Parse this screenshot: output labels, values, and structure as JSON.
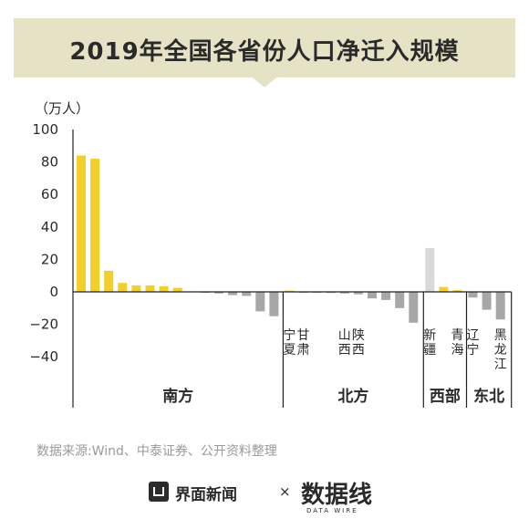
{
  "title": "2019年全国各省份人口净迁入规模",
  "source": "数据来源:Wind、中泰证券、公开资料整理",
  "brands": {
    "jiemian": "界面新闻",
    "cross": "×",
    "datawire_cn": "数据线",
    "datawire_en": "DATA WIRE"
  },
  "colors": {
    "title_band": "#e6e2c6",
    "south": "#f2cf2a",
    "negative": "#a7a7a7",
    "west_highlight": "#d9d9d9",
    "text": "#2a2a2a"
  },
  "chart_data": {
    "type": "bar",
    "title": "2019年全国各省份人口净迁入规模",
    "ylabel": "（万人）",
    "ylim": [
      -40,
      100
    ],
    "yticks": [
      100,
      80,
      60,
      40,
      20,
      0,
      -20,
      -40
    ],
    "grid": false,
    "regions": [
      {
        "name": "南方",
        "bars": [
          {
            "value": 84,
            "color": "south"
          },
          {
            "value": 82,
            "color": "south"
          },
          {
            "value": 13,
            "color": "south"
          },
          {
            "value": 5.5,
            "color": "south"
          },
          {
            "value": 4,
            "color": "south"
          },
          {
            "value": 4,
            "color": "south"
          },
          {
            "value": 3.5,
            "color": "south"
          },
          {
            "value": 2.5,
            "color": "south"
          },
          {
            "value": 0.3,
            "color": "south"
          },
          {
            "value": -0.5,
            "color": "negative"
          },
          {
            "value": -1,
            "color": "negative"
          },
          {
            "value": -2,
            "color": "negative"
          },
          {
            "value": -2.5,
            "color": "negative"
          },
          {
            "value": -12,
            "color": "negative"
          },
          {
            "value": -15,
            "color": "negative"
          }
        ]
      },
      {
        "name": "北方",
        "bars": [
          {
            "value": 0.8,
            "color": "south"
          },
          {
            "value": -0.3,
            "color": "negative"
          },
          {
            "value": -0.5,
            "color": "negative"
          },
          {
            "value": -0.7,
            "color": "negative"
          },
          {
            "value": -1,
            "color": "negative"
          },
          {
            "value": -1.5,
            "color": "negative"
          },
          {
            "value": -4,
            "color": "negative"
          },
          {
            "value": -5,
            "color": "negative"
          },
          {
            "value": -10,
            "color": "negative"
          },
          {
            "value": -19,
            "color": "negative"
          }
        ]
      },
      {
        "name": "西部",
        "bars": [
          {
            "value": 27,
            "color": "west_highlight"
          },
          {
            "value": 3,
            "color": "south"
          },
          {
            "value": 1,
            "color": "south"
          }
        ]
      },
      {
        "name": "东北",
        "bars": [
          {
            "value": -3.5,
            "color": "negative"
          },
          {
            "value": -11,
            "color": "negative"
          },
          {
            "value": -17,
            "color": "negative"
          }
        ]
      }
    ],
    "province_labels": [
      {
        "region": 1,
        "index": 0,
        "text": "宁夏"
      },
      {
        "region": 1,
        "index": 1,
        "text": "甘肃"
      },
      {
        "region": 1,
        "index": 4,
        "text": "山西"
      },
      {
        "region": 1,
        "index": 5,
        "text": "陕西"
      },
      {
        "region": 2,
        "index": 0,
        "text": "新疆"
      },
      {
        "region": 2,
        "index": 2,
        "text": "青海"
      },
      {
        "region": 3,
        "index": 0,
        "text": "辽宁"
      },
      {
        "region": 3,
        "index": 2,
        "text": "黑龙江"
      }
    ]
  }
}
